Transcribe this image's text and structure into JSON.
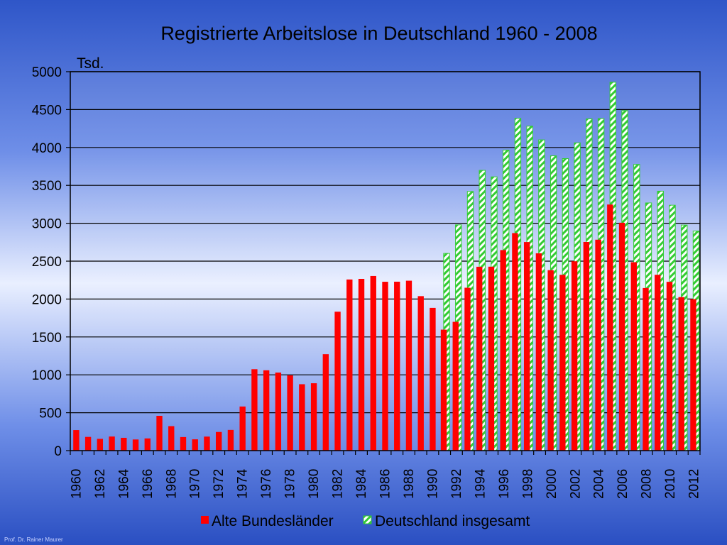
{
  "chart_data": {
    "type": "bar",
    "title": "Registrierte  Arbeitslose in Deutschland 1960 - 2008",
    "ylabel": "Tsd.",
    "ylim": [
      0,
      5000
    ],
    "y_ticks": [
      "0",
      "500",
      "1000",
      "1500",
      "2000",
      "2500",
      "3000",
      "3500",
      "4000",
      "4500",
      "5000"
    ],
    "grid": true,
    "legend_position": "bottom",
    "categories": [
      1960,
      1961,
      1962,
      1963,
      1964,
      1965,
      1966,
      1967,
      1968,
      1969,
      1970,
      1971,
      1972,
      1973,
      1974,
      1975,
      1976,
      1977,
      1978,
      1979,
      1980,
      1981,
      1982,
      1983,
      1984,
      1985,
      1986,
      1987,
      1988,
      1989,
      1990,
      1991,
      1992,
      1993,
      1994,
      1995,
      1996,
      1997,
      1998,
      1999,
      2000,
      2001,
      2002,
      2003,
      2004,
      2005,
      2006,
      2007,
      2008,
      2009,
      2010,
      2011,
      2012
    ],
    "x_tick_labels": [
      "1960",
      "1962",
      "1964",
      "1966",
      "1968",
      "1970",
      "1972",
      "1974",
      "1976",
      "1978",
      "1980",
      "1982",
      "1984",
      "1986",
      "1988",
      "1990",
      "1992",
      "1994",
      "1996",
      "1998",
      "2000",
      "2002",
      "2004",
      "2006",
      "2008",
      "2010",
      "2012"
    ],
    "series": [
      {
        "name": "Alte Bundesländer",
        "color": "#ff0000",
        "values": [
          271,
          181,
          155,
          186,
          169,
          147,
          161,
          459,
          323,
          179,
          149,
          185,
          246,
          273,
          582,
          1074,
          1060,
          1030,
          993,
          876,
          889,
          1272,
          1833,
          2258,
          2266,
          2304,
          2228,
          2229,
          2242,
          2038,
          1883,
          1596,
          1699,
          2149,
          2426,
          2427,
          2646,
          2870,
          2752,
          2604,
          2381,
          2320,
          2498,
          2753,
          2783,
          3247,
          3007,
          2486,
          2145,
          2320,
          2227,
          2026,
          1999
        ]
      },
      {
        "name": "Deutschland insgesamt",
        "color": "#33cc33",
        "values": [
          null,
          null,
          null,
          null,
          null,
          null,
          null,
          null,
          null,
          null,
          null,
          null,
          null,
          null,
          null,
          null,
          null,
          null,
          null,
          null,
          null,
          null,
          null,
          null,
          null,
          null,
          null,
          null,
          null,
          null,
          null,
          2602,
          2979,
          3419,
          3698,
          3612,
          3965,
          4384,
          4281,
          4100,
          3890,
          3853,
          4061,
          4377,
          4381,
          4861,
          4487,
          3776,
          3268,
          3423,
          3238,
          2976,
          2897
        ]
      }
    ]
  },
  "footer": {
    "credit": "Prof. Dr. Rainer Maurer"
  }
}
